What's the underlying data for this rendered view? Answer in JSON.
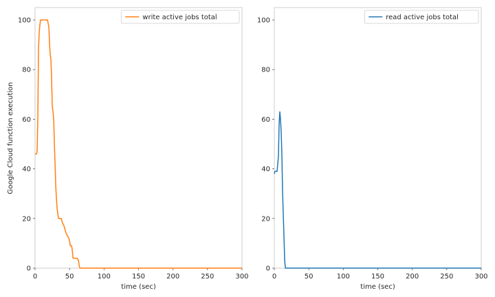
{
  "chart_data": [
    {
      "type": "line",
      "title": "",
      "xlabel": "time (sec)",
      "ylabel": "Google Cloud function execution",
      "xlim": [
        0,
        300
      ],
      "ylim": [
        0,
        105
      ],
      "xticks": [
        0,
        50,
        100,
        150,
        200,
        250,
        300
      ],
      "yticks": [
        0,
        20,
        40,
        60,
        80,
        100
      ],
      "grid": false,
      "legend_position": "top-right",
      "series": [
        {
          "name": "write active jobs total",
          "color": "#ff7f0e",
          "x": [
            0,
            2,
            3,
            4,
            5,
            6,
            7,
            8,
            9,
            10,
            12,
            14,
            16,
            18,
            20,
            21,
            22,
            23,
            24,
            25,
            26,
            27,
            28,
            29,
            30,
            31,
            32,
            34,
            36,
            38,
            40,
            42,
            44,
            45,
            47,
            49,
            50,
            51,
            53,
            54,
            55,
            57,
            59,
            61,
            63,
            64,
            65,
            300
          ],
          "y": [
            46,
            46,
            47,
            60,
            88,
            95,
            98,
            100,
            100,
            100,
            100,
            100,
            100,
            100,
            97,
            90,
            86,
            84,
            76,
            65,
            63,
            60,
            50,
            42,
            33,
            28,
            24,
            20,
            20,
            20,
            18,
            17,
            15,
            14,
            13,
            12,
            11,
            9,
            9,
            7,
            4,
            4,
            4,
            4,
            3,
            1,
            0,
            0
          ]
        },
        {
          "name": "read active jobs total",
          "color": "#1f77b4",
          "x": [
            0,
            1,
            2,
            3,
            4,
            5,
            6,
            7,
            8,
            9,
            10,
            11,
            12,
            13,
            14,
            15,
            16,
            17,
            300
          ],
          "y": [
            38,
            39,
            39,
            39,
            39,
            42,
            45,
            58,
            63,
            60,
            55,
            46,
            31,
            22,
            13,
            3,
            0,
            0,
            0
          ]
        }
      ]
    }
  ]
}
